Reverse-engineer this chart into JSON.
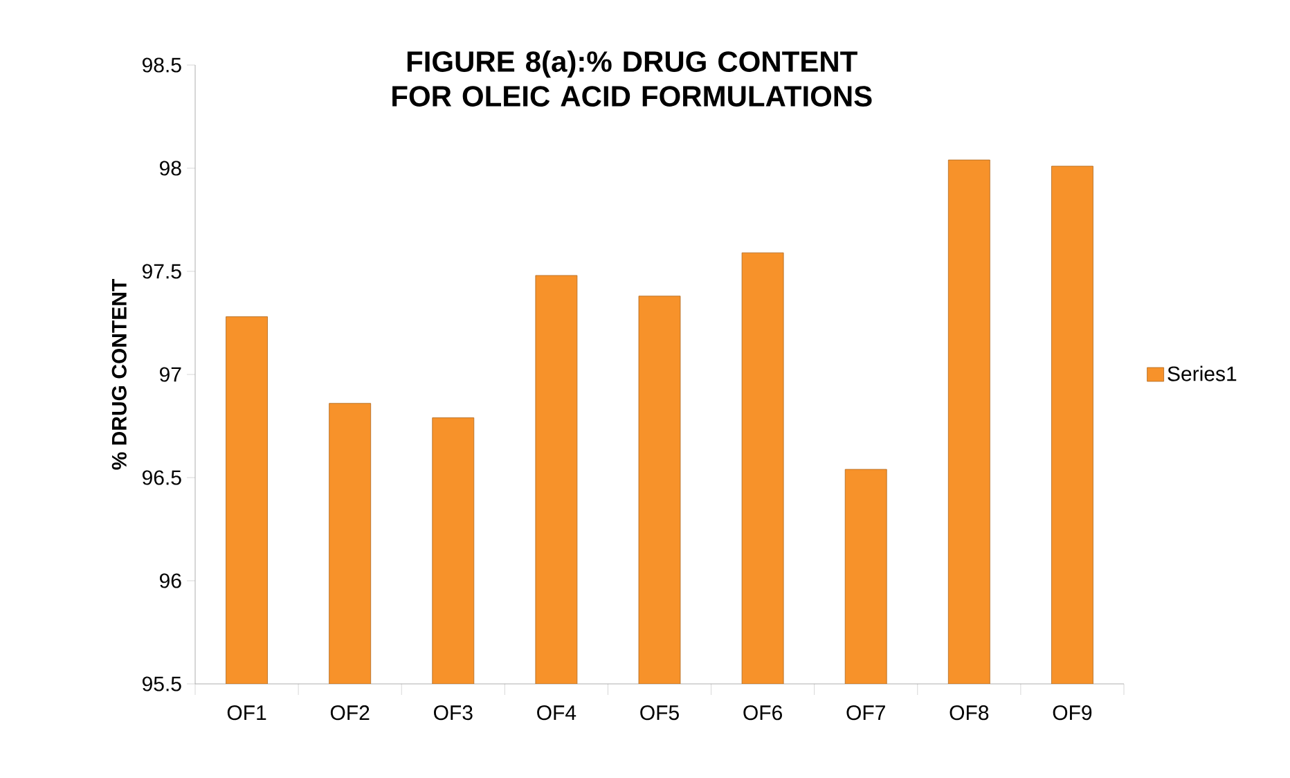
{
  "chart_data": {
    "type": "bar",
    "title": "FIGURE 8(a):% DRUG CONTENT FOR OLEIC ACID FORMULATIONS",
    "ylabel": "% DRUG CONTENT",
    "categories": [
      "OF1",
      "OF2",
      "OF3",
      "OF4",
      "OF5",
      "OF6",
      "OF7",
      "OF8",
      "OF9"
    ],
    "series": [
      {
        "name": "Series1",
        "color": "#f7922a",
        "values": [
          97.28,
          96.86,
          96.79,
          97.48,
          97.38,
          97.59,
          96.54,
          98.04,
          98.01
        ]
      }
    ],
    "ylim": [
      95.5,
      98.5
    ],
    "yticks": [
      95.5,
      96,
      96.5,
      97,
      97.5,
      98,
      98.5
    ],
    "grid": false,
    "legend": "right"
  }
}
